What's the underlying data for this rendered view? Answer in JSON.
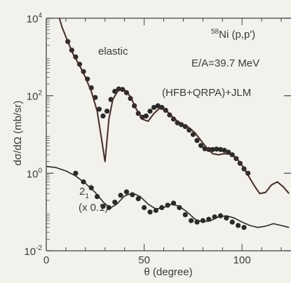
{
  "chart_data": {
    "type": "scatter",
    "title": "",
    "xlabel": "θ (degree)",
    "ylabel": "dσ/dΩ (mb/sr)",
    "xlim": [
      0,
      125
    ],
    "ylim_log10": [
      -2,
      4
    ],
    "y_scale": "log",
    "grid": false,
    "x_ticks": [
      {
        "value": 0,
        "label": "0"
      },
      {
        "value": 50,
        "label": "50"
      },
      {
        "value": 100,
        "label": "100"
      }
    ],
    "y_ticks": [
      {
        "exp": 4,
        "base": "10",
        "sup": "4"
      },
      {
        "exp": 2,
        "base": "10",
        "sup": "2"
      },
      {
        "exp": 0,
        "base": "10",
        "sup": "0"
      },
      {
        "exp": -2,
        "base": "10",
        "sup": "-2"
      }
    ],
    "annotations": {
      "nucleus_mass": "58",
      "reaction": "Ni (p,p')",
      "energy": "E/A=39.7 MeV",
      "model": "(HFB+QRPA)+JLM",
      "elastic_label": "elastic",
      "inelastic_label_base": "2",
      "inelastic_label_sub": "1",
      "inelastic_label_sup": "+",
      "inelastic_scale": "(x 0.1)"
    },
    "series": [
      {
        "kind": "points",
        "x": [
          11,
          13,
          15,
          17,
          19,
          21,
          23,
          25,
          27,
          29,
          31,
          33,
          35,
          37,
          39,
          41,
          43,
          45,
          47,
          49,
          51,
          53,
          55,
          57,
          59,
          61,
          63,
          65,
          67,
          69,
          71,
          73,
          75,
          77,
          79,
          81,
          83,
          85,
          87,
          89,
          91,
          93,
          95,
          97,
          99,
          101,
          103
        ],
        "y": [
          2500,
          1500,
          1000,
          650,
          420,
          270,
          160,
          90,
          45,
          30,
          40,
          80,
          130,
          150,
          145,
          120,
          85,
          55,
          35,
          28,
          30,
          40,
          50,
          55,
          50,
          42,
          32,
          25,
          20,
          18,
          16,
          13,
          10,
          7,
          5.2,
          4.3,
          4.1,
          4.1,
          4.2,
          4.1,
          3.9,
          3.5,
          3,
          2.4,
          1.8,
          1.3,
          1
        ]
      },
      {
        "kind": "curve",
        "x": [
          5,
          8,
          11,
          14,
          17,
          20,
          23,
          26,
          28,
          30,
          32,
          34,
          37,
          40,
          43,
          46,
          49,
          52,
          55,
          58,
          61,
          64,
          67,
          70,
          73,
          76,
          79,
          82,
          85,
          88,
          91,
          94,
          97,
          100,
          103,
          106,
          109,
          112,
          115,
          118,
          121,
          124
        ],
        "y": [
          20000,
          6000,
          2500,
          1100,
          600,
          300,
          130,
          40,
          9,
          2,
          25,
          80,
          145,
          140,
          95,
          45,
          25,
          22,
          35,
          48,
          43,
          30,
          22,
          18,
          15,
          11,
          7,
          4.5,
          3.2,
          3,
          3.2,
          3.1,
          2.5,
          1.6,
          0.9,
          0.5,
          0.3,
          0.32,
          0.5,
          0.6,
          0.45,
          0.3
        ]
      },
      {
        "kind": "points",
        "x": [
          15,
          19,
          23,
          26,
          29,
          32,
          35,
          38,
          41,
          44,
          47,
          50,
          53,
          56,
          59,
          62,
          65,
          68,
          71,
          74,
          77,
          80,
          83,
          86,
          89,
          92,
          95,
          98,
          101
        ],
        "y": [
          1,
          0.6,
          0.42,
          0.25,
          0.14,
          0.13,
          0.18,
          0.27,
          0.33,
          0.28,
          0.22,
          0.13,
          0.1,
          0.11,
          0.13,
          0.15,
          0.17,
          0.13,
          0.085,
          0.06,
          0.055,
          0.06,
          0.065,
          0.075,
          0.08,
          0.07,
          0.055,
          0.045,
          0.04
        ]
      },
      {
        "kind": "curve",
        "x": [
          0,
          5,
          10,
          15,
          20,
          25,
          30,
          33,
          36,
          40,
          44,
          48,
          52,
          56,
          60,
          64,
          68,
          72,
          76,
          80,
          84,
          88,
          92,
          96,
          100,
          104,
          108,
          112,
          116,
          120,
          124
        ],
        "y": [
          1.5,
          1.4,
          1.15,
          0.85,
          0.55,
          0.32,
          0.16,
          0.13,
          0.16,
          0.26,
          0.31,
          0.25,
          0.16,
          0.12,
          0.13,
          0.16,
          0.14,
          0.1,
          0.065,
          0.055,
          0.06,
          0.075,
          0.08,
          0.07,
          0.055,
          0.045,
          0.04,
          0.043,
          0.05,
          0.045,
          0.04
        ]
      }
    ],
    "colors": {
      "background": "#f3f1ec",
      "ink": "#2a2a2a",
      "elastic_red_trace": "#b5412f"
    }
  }
}
